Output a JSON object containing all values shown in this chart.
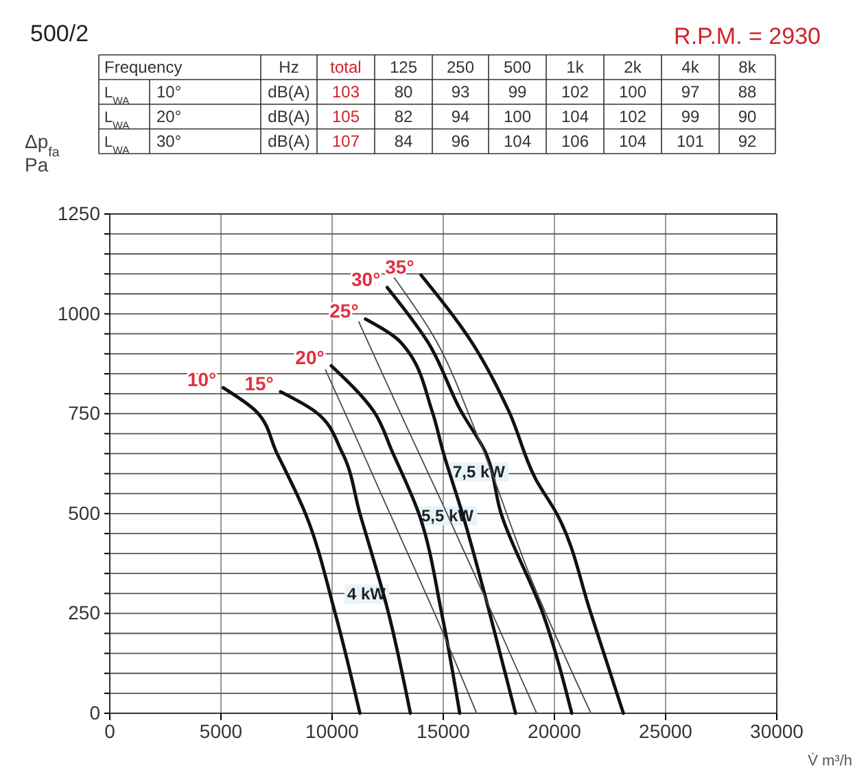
{
  "chart_data": [
    {
      "type": "other",
      "title": "500/2",
      "data_labels": true,
      "annotations": [
        "R.P.M. = 2930",
        "Frequency",
        "Hz",
        "L$_{WA}$",
        "dB(A)",
        "L$_{WA}$",
        "dB(A)",
        "L$_{WA}$",
        "dB(A)"
      ],
      "categories": [
        "total",
        "125",
        "250",
        "500",
        "1k",
        "2k",
        "4k",
        "8k"
      ],
      "series": [
        {
          "name": "10°",
          "values": [
            103,
            80,
            93,
            99,
            102,
            100,
            97,
            88
          ]
        },
        {
          "name": "20°",
          "values": [
            105,
            82,
            94,
            100,
            104,
            102,
            99,
            90
          ]
        },
        {
          "name": "30°",
          "values": [
            107,
            84,
            96,
            104,
            106,
            104,
            101,
            92
          ]
        }
      ]
    },
    {
      "type": "line",
      "xlabel": "V̇ m³/h",
      "ylabel": "Δp$_{fa}$ Pa",
      "xlim": [
        0,
        30000
      ],
      "ylim": [
        0,
        1250
      ],
      "xticks": [
        0,
        5000,
        10000,
        15000,
        20000,
        25000,
        30000
      ],
      "yticks": [
        0,
        {
          "value": 50,
          "label": null
        },
        {
          "value": 100,
          "label": null
        },
        {
          "value": 150,
          "label": null
        },
        {
          "value": 200,
          "label": null
        },
        250,
        {
          "value": 300,
          "label": null
        },
        {
          "value": 350,
          "label": null
        },
        {
          "value": 400,
          "label": null
        },
        {
          "value": 450,
          "label": null
        },
        500,
        {
          "value": 550,
          "label": null
        },
        {
          "value": 600,
          "label": null
        },
        {
          "value": 650,
          "label": null
        },
        {
          "value": 700,
          "label": null
        },
        750,
        {
          "value": 800,
          "label": null
        },
        {
          "value": 850,
          "label": null
        },
        {
          "value": 900,
          "label": null
        },
        {
          "value": 950,
          "label": null
        },
        1000,
        {
          "value": 1050,
          "label": null
        },
        {
          "value": 1100,
          "label": null
        },
        {
          "value": 1150,
          "label": null
        },
        {
          "value": 1200,
          "label": null
        },
        1250
      ],
      "grid": true,
      "marker": "none",
      "line_style": "solid",
      "series": [
        {
          "name": "10°",
          "color": "#111111",
          "x": [
            5100,
            6580,
            7500,
            8800,
            10140,
            11250
          ],
          "values": [
            815,
            756,
            653,
            500,
            250,
            0
          ]
        },
        {
          "name": "15°",
          "color": "#111111",
          "x": [
            7680,
            9220,
            10450,
            11250,
            12540,
            13520
          ],
          "values": [
            805,
            756,
            653,
            500,
            250,
            0
          ]
        },
        {
          "name": "20°",
          "color": "#111111",
          "x": [
            9960,
            11870,
            12720,
            13900,
            14930,
            15740
          ],
          "values": [
            870,
            756,
            653,
            500,
            250,
            0
          ]
        },
        {
          "name": "25°",
          "color": "#111111",
          "x": [
            11500,
            13100,
            14500,
            15000,
            15860,
            17090,
            18250
          ],
          "values": [
            987,
            928,
            756,
            653,
            500,
            250,
            0
          ]
        },
        {
          "name": "30°",
          "color": "#111111",
          "x": [
            12480,
            14320,
            15800,
            16900,
            17600,
            19480,
            20780
          ],
          "values": [
            1066,
            928,
            756,
            653,
            500,
            250,
            0
          ]
        },
        {
          "name": "35°",
          "color": "#111111",
          "x": [
            14000,
            16290,
            17950,
            19170,
            20100,
            21640,
            23100
          ],
          "values": [
            1097,
            928,
            756,
            585,
            500,
            250,
            0
          ]
        },
        {
          "color": "#4a4a4a",
          "x": [
            9700,
            11000,
            13000,
            15000,
            16500
          ],
          "values": [
            860,
            700,
            450,
            200,
            0
          ]
        },
        {
          "color": "#4a4a4a",
          "x": [
            11200,
            13000,
            15000,
            17200,
            19200
          ],
          "values": [
            980,
            760,
            520,
            250,
            0
          ]
        },
        {
          "color": "#4a4a4a",
          "x": [
            12800,
            14500,
            16500,
            19000,
            21640
          ],
          "values": [
            1090,
            950,
            700,
            330,
            0
          ]
        }
      ],
      "annotations": [
        "4 kW",
        "5,5 kW",
        "7,5 kW"
      ]
    }
  ]
}
